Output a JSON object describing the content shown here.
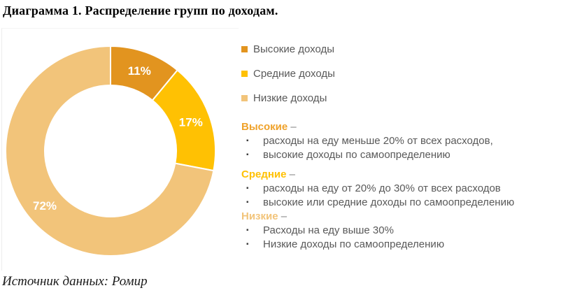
{
  "title": "Диаграмма 1. Распределение групп по доходам.",
  "source": "Источник данных: Ромир",
  "chart_data": {
    "type": "pie",
    "subtype": "donut",
    "categories": [
      "Высокие доходы",
      "Средние доходы",
      "Низкие доходы"
    ],
    "values": [
      11,
      17,
      72
    ],
    "labels": [
      "11%",
      "17%",
      "72%"
    ],
    "colors": [
      "#E2941F",
      "#FFC103",
      "#F2C47A"
    ],
    "label_color": "#FFFFFF",
    "start_angle_deg": 0,
    "direction": "clockwise",
    "inner_radius_ratio": 0.627,
    "legend_position": "right",
    "title": "Диаграмма 1. Распределение групп по доходам."
  },
  "definitions": [
    {
      "term": "Высокие",
      "dash": "–",
      "color": "#EFA22B",
      "bullets": [
        "расходы на еду меньше 20% от всех расходов,",
        "высокие доходы по самоопределению"
      ]
    },
    {
      "term": "Средние",
      "dash": "–",
      "color": "#FFC103",
      "bullets": [
        "расходы на еду от 20% до 30% от всех расходов",
        "высокие или средние доходы по самоопределению"
      ]
    },
    {
      "term": "Низкие",
      "dash": "–",
      "color": "#F2C47A",
      "bullets": [
        "Расходы на еду выше 30%",
        "Низкие доходы по самоопределению"
      ]
    }
  ],
  "bullet_glyph": "▪"
}
